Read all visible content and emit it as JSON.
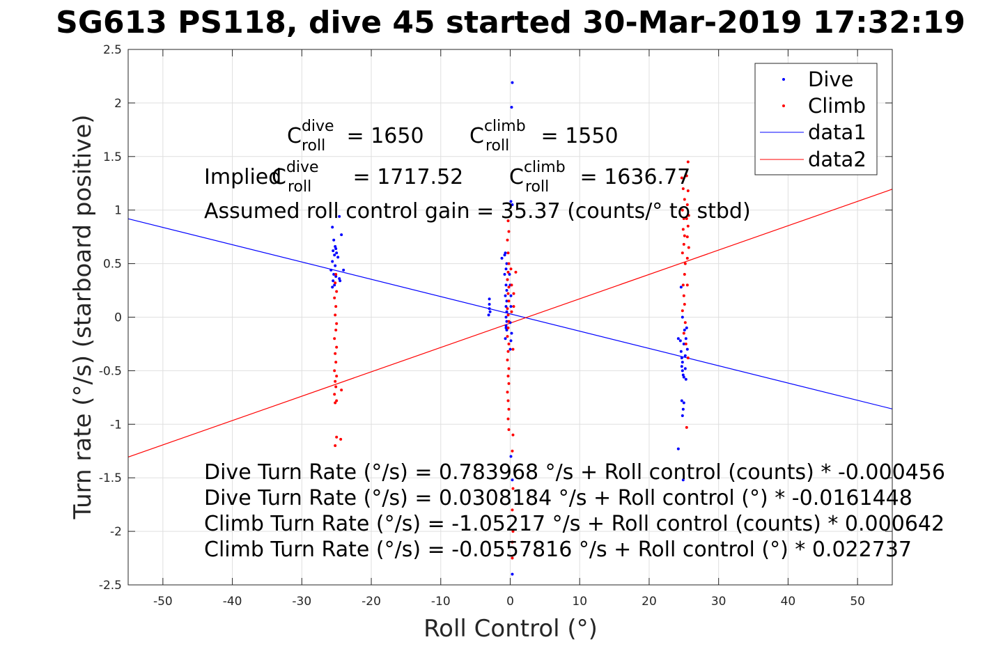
{
  "chart_data": {
    "type": "scatter",
    "title": "SG613 PS118, dive 45 started 30-Mar-2019 17:32:19",
    "xlabel": "Roll Control (°)",
    "ylabel": "Turn rate (°/s) (starboard positive)",
    "xlim": [
      -55,
      55
    ],
    "ylim": [
      -2.5,
      2.5
    ],
    "xticks": [
      "-50",
      "-40",
      "-30",
      "-20",
      "-10",
      "0",
      "10",
      "20",
      "30",
      "40",
      "50"
    ],
    "yticks": [
      "2.5",
      "2",
      "1.5",
      "1",
      "0.5",
      "0",
      "-0.5",
      "-1",
      "-1.5",
      "-2",
      "-2.5"
    ],
    "grid": true,
    "legend_position": "top-right",
    "legend": [
      "Dive",
      "Climb",
      "data1",
      "data2"
    ],
    "colors": {
      "dive": "#0000ff",
      "climb": "#ff0000"
    },
    "series": [
      {
        "name": "Dive",
        "kind": "points",
        "color": "#0000ff",
        "points": [
          [
            -25.6,
            0.84
          ],
          [
            -25.4,
            0.72
          ],
          [
            -25.2,
            0.66
          ],
          [
            -25.1,
            0.64
          ],
          [
            -25.5,
            0.62
          ],
          [
            -25.0,
            0.6
          ],
          [
            -25.3,
            0.58
          ],
          [
            -24.8,
            0.56
          ],
          [
            -25.6,
            0.52
          ],
          [
            -25.2,
            0.48
          ],
          [
            -25.8,
            0.44
          ],
          [
            -25.4,
            0.4
          ],
          [
            -25.1,
            0.38
          ],
          [
            -25.5,
            0.34
          ],
          [
            -24.6,
            0.36
          ],
          [
            -24.6,
            0.94
          ],
          [
            -24.3,
            0.77
          ],
          [
            -24.0,
            0.44
          ],
          [
            -25.3,
            0.3
          ],
          [
            -25.6,
            0.28
          ],
          [
            -24.5,
            0.34
          ],
          [
            -3.0,
            0.17
          ],
          [
            -3.0,
            0.12
          ],
          [
            -3.0,
            0.08
          ],
          [
            -2.9,
            0.05
          ],
          [
            -3.1,
            0.02
          ],
          [
            -1.2,
            0.55
          ],
          [
            -0.8,
            0.58
          ],
          [
            -0.7,
            0.6
          ],
          [
            -0.5,
            0.5
          ],
          [
            -0.6,
            0.45
          ],
          [
            -0.8,
            0.4
          ],
          [
            -0.4,
            0.35
          ],
          [
            -0.6,
            0.3
          ],
          [
            -0.5,
            0.25
          ],
          [
            -0.7,
            0.2
          ],
          [
            -0.5,
            0.15
          ],
          [
            -0.6,
            0.1
          ],
          [
            -0.5,
            0.05
          ],
          [
            -0.6,
            0.0
          ],
          [
            -0.5,
            -0.04
          ],
          [
            -0.6,
            -0.08
          ],
          [
            -0.5,
            -0.12
          ],
          [
            -0.7,
            -0.2
          ],
          [
            -0.6,
            -0.1
          ],
          [
            0.0,
            0.3
          ],
          [
            0.1,
            0.2
          ],
          [
            0.1,
            0.1
          ],
          [
            -0.1,
            0.4
          ],
          [
            0.0,
            -0.05
          ],
          [
            0.2,
            -0.15
          ],
          [
            0.1,
            -0.22
          ],
          [
            0.0,
            -0.3
          ],
          [
            0.1,
            1.08
          ],
          [
            0.3,
            1.05
          ],
          [
            0.3,
            2.19
          ],
          [
            0.2,
            1.96
          ],
          [
            0.3,
            -1.52
          ],
          [
            0.3,
            -2.4
          ],
          [
            0.1,
            -1.3
          ],
          [
            24.2,
            -0.2
          ],
          [
            24.5,
            -0.22
          ],
          [
            24.6,
            -0.32
          ],
          [
            24.7,
            -0.38
          ],
          [
            24.8,
            -0.42
          ],
          [
            24.7,
            -0.46
          ],
          [
            24.8,
            -0.5
          ],
          [
            24.9,
            -0.54
          ],
          [
            25.0,
            -0.56
          ],
          [
            25.2,
            -0.36
          ],
          [
            25.1,
            -0.12
          ],
          [
            25.3,
            -0.2
          ],
          [
            25.0,
            -0.25
          ],
          [
            25.2,
            -0.48
          ],
          [
            25.3,
            -0.58
          ],
          [
            25.0,
            -0.8
          ],
          [
            24.9,
            -0.86
          ],
          [
            24.8,
            -0.92
          ],
          [
            24.7,
            -0.78
          ],
          [
            24.2,
            -1.23
          ],
          [
            24.6,
            0.28
          ],
          [
            24.8,
            0.0
          ],
          [
            25.4,
            -0.1
          ],
          [
            25.5,
            -0.3
          ],
          [
            24.9,
            -1.52
          ]
        ]
      },
      {
        "name": "Climb",
        "kind": "points",
        "color": "#ff0000",
        "points": [
          [
            -25.1,
            0.4
          ],
          [
            -25.2,
            0.32
          ],
          [
            -25.0,
            0.24
          ],
          [
            -25.3,
            0.18
          ],
          [
            -25.1,
            0.1
          ],
          [
            -25.2,
            0.02
          ],
          [
            -25.0,
            -0.06
          ],
          [
            -25.1,
            -0.12
          ],
          [
            -25.3,
            -0.2
          ],
          [
            -25.0,
            -0.28
          ],
          [
            -25.2,
            -0.34
          ],
          [
            -25.1,
            -0.42
          ],
          [
            -25.3,
            -0.5
          ],
          [
            -25.0,
            -0.55
          ],
          [
            -25.2,
            -0.6
          ],
          [
            -25.1,
            -0.65
          ],
          [
            -25.3,
            -0.72
          ],
          [
            -25.0,
            -0.78
          ],
          [
            -25.2,
            -0.8
          ],
          [
            -24.3,
            -0.68
          ],
          [
            -25.0,
            -1.12
          ],
          [
            -24.4,
            -1.14
          ],
          [
            -25.2,
            -1.2
          ],
          [
            -0.3,
            0.9
          ],
          [
            -0.2,
            0.8
          ],
          [
            -0.4,
            0.72
          ],
          [
            -0.3,
            0.6
          ],
          [
            -0.2,
            0.5
          ],
          [
            -0.3,
            0.42
          ],
          [
            -0.4,
            0.35
          ],
          [
            -0.2,
            0.28
          ],
          [
            -0.3,
            0.22
          ],
          [
            -0.2,
            0.15
          ],
          [
            -0.4,
            0.08
          ],
          [
            -0.3,
            0.02
          ],
          [
            -0.2,
            -0.04
          ],
          [
            -0.3,
            -0.1
          ],
          [
            -0.4,
            -0.18
          ],
          [
            -0.2,
            -0.25
          ],
          [
            -0.3,
            -0.32
          ],
          [
            -0.4,
            -0.4
          ],
          [
            -0.2,
            -0.48
          ],
          [
            -0.3,
            -0.55
          ],
          [
            -0.2,
            -0.62
          ],
          [
            -0.4,
            -0.7
          ],
          [
            -0.3,
            -0.78
          ],
          [
            -0.2,
            -0.86
          ],
          [
            -0.3,
            -0.95
          ],
          [
            -0.2,
            -1.05
          ],
          [
            0.1,
            0.45
          ],
          [
            0.2,
            0.3
          ],
          [
            0.2,
            0.05
          ],
          [
            0.5,
            0.22
          ],
          [
            0.5,
            0.1
          ],
          [
            0.8,
            0.42
          ],
          [
            0.4,
            -0.3
          ],
          [
            0.4,
            -1.1
          ],
          [
            0.3,
            -1.25
          ],
          [
            0.4,
            -1.6
          ],
          [
            0.3,
            -1.8
          ],
          [
            0.4,
            -2.0
          ],
          [
            0.3,
            -2.1
          ],
          [
            0.3,
            -2.25
          ],
          [
            24.7,
            1.3
          ],
          [
            24.9,
            1.2
          ],
          [
            25.1,
            1.1
          ],
          [
            24.8,
            1.0
          ],
          [
            25.0,
            0.92
          ],
          [
            24.9,
            0.82
          ],
          [
            25.1,
            0.76
          ],
          [
            25.0,
            0.68
          ],
          [
            24.8,
            0.6
          ],
          [
            25.2,
            0.5
          ],
          [
            25.1,
            0.4
          ],
          [
            24.9,
            0.3
          ],
          [
            25.0,
            0.2
          ],
          [
            25.1,
            0.12
          ],
          [
            24.8,
            0.06
          ],
          [
            25.2,
            -0.05
          ],
          [
            25.0,
            -0.15
          ],
          [
            25.3,
            -0.25
          ],
          [
            25.6,
            1.45
          ],
          [
            25.4,
            1.32
          ],
          [
            25.6,
            1.18
          ],
          [
            25.5,
            1.05
          ],
          [
            25.4,
            0.92
          ],
          [
            25.6,
            0.85
          ],
          [
            25.5,
            0.75
          ],
          [
            25.7,
            0.65
          ],
          [
            25.5,
            0.55
          ],
          [
            25.4,
            -1.03
          ],
          [
            25.6,
            -0.38
          ],
          [
            25.5,
            0.3
          ],
          [
            25.7,
            0.95
          ]
        ]
      },
      {
        "name": "data1",
        "kind": "line",
        "color": "#0000ff",
        "points": [
          [
            -55,
            0.9188
          ],
          [
            55,
            -0.857
          ]
        ]
      },
      {
        "name": "data2",
        "kind": "line",
        "color": "#ff0000",
        "points": [
          [
            -55,
            -1.3063
          ],
          [
            55,
            1.1948
          ]
        ]
      }
    ],
    "annotations": {
      "c_roll_dive": {
        "base": "C",
        "sup": "dive",
        "sub": "roll",
        "value": " = 1650"
      },
      "c_roll_climb": {
        "base": "C",
        "sup": "climb",
        "sub": "roll",
        "value": " = 1550"
      },
      "implied_prefix": "Implied ",
      "implied_dive": {
        "base": "C",
        "sup": "dive",
        "sub": "roll",
        "value": " = 1717.52"
      },
      "implied_climb": {
        "base": "C",
        "sup": "climb",
        "sub": "roll",
        "value": " = 1636.77"
      },
      "gain": "Assumed roll control gain = 35.37 (counts/° to stbd)",
      "equations": [
        "Dive Turn Rate (°/s) = 0.783968 °/s + Roll control (counts) * -0.000456",
        "Dive Turn Rate (°/s) = 0.0308184 °/s + Roll control (°) * -0.0161448",
        "Climb Turn Rate (°/s) = -1.05217 °/s + Roll control (counts) * 0.000642",
        "Climb Turn Rate (°/s) = -0.0557816 °/s + Roll control (°) * 0.022737"
      ]
    }
  }
}
